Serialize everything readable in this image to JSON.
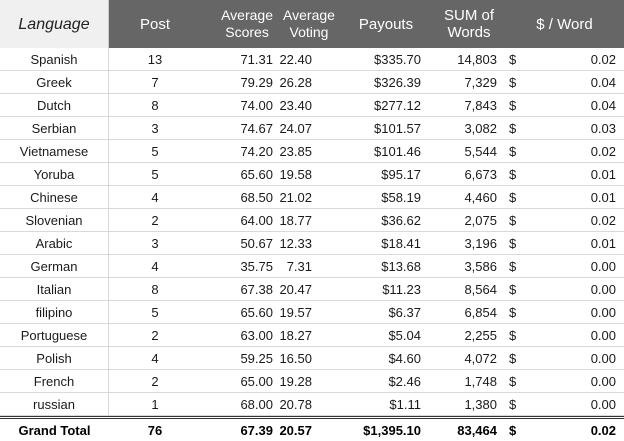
{
  "headers": {
    "language": "Language",
    "post": "Post",
    "avg_scores_1": "Average",
    "avg_scores_2": "Scores",
    "avg_voting_1": "Average",
    "avg_voting_2": "Voting",
    "payouts": "Payouts",
    "sum_words_1": "SUM of",
    "sum_words_2": "Words",
    "dollar_per_word": "$ / Word"
  },
  "colors": {
    "header_bg": "#666666",
    "header_text": "#ffffff",
    "first_header_bg": "#f0f0f0",
    "row_border": "#d9d9d9"
  },
  "rows": [
    {
      "language": "Spanish",
      "post": "13",
      "score": "71.31",
      "voting": "22.40",
      "payout": "$335.70",
      "words": "14,803",
      "dollar": "$",
      "ratio": "0.02"
    },
    {
      "language": "Greek",
      "post": "7",
      "score": "79.29",
      "voting": "26.28",
      "payout": "$326.39",
      "words": "7,329",
      "dollar": "$",
      "ratio": "0.04"
    },
    {
      "language": "Dutch",
      "post": "8",
      "score": "74.00",
      "voting": "23.40",
      "payout": "$277.12",
      "words": "7,843",
      "dollar": "$",
      "ratio": "0.04"
    },
    {
      "language": "Serbian",
      "post": "3",
      "score": "74.67",
      "voting": "24.07",
      "payout": "$101.57",
      "words": "3,082",
      "dollar": "$",
      "ratio": "0.03"
    },
    {
      "language": "Vietnamese",
      "post": "5",
      "score": "74.20",
      "voting": "23.85",
      "payout": "$101.46",
      "words": "5,544",
      "dollar": "$",
      "ratio": "0.02"
    },
    {
      "language": "Yoruba",
      "post": "5",
      "score": "65.60",
      "voting": "19.58",
      "payout": "$95.17",
      "words": "6,673",
      "dollar": "$",
      "ratio": "0.01"
    },
    {
      "language": "Chinese",
      "post": "4",
      "score": "68.50",
      "voting": "21.02",
      "payout": "$58.19",
      "words": "4,460",
      "dollar": "$",
      "ratio": "0.01"
    },
    {
      "language": "Slovenian",
      "post": "2",
      "score": "64.00",
      "voting": "18.77",
      "payout": "$36.62",
      "words": "2,075",
      "dollar": "$",
      "ratio": "0.02"
    },
    {
      "language": "Arabic",
      "post": "3",
      "score": "50.67",
      "voting": "12.33",
      "payout": "$18.41",
      "words": "3,196",
      "dollar": "$",
      "ratio": "0.01"
    },
    {
      "language": "German",
      "post": "4",
      "score": "35.75",
      "voting": "7.31",
      "payout": "$13.68",
      "words": "3,586",
      "dollar": "$",
      "ratio": "0.00"
    },
    {
      "language": "Italian",
      "post": "8",
      "score": "67.38",
      "voting": "20.47",
      "payout": "$11.23",
      "words": "8,564",
      "dollar": "$",
      "ratio": "0.00"
    },
    {
      "language": "filipino",
      "post": "5",
      "score": "65.60",
      "voting": "19.57",
      "payout": "$6.37",
      "words": "6,854",
      "dollar": "$",
      "ratio": "0.00"
    },
    {
      "language": "Portuguese",
      "post": "2",
      "score": "63.00",
      "voting": "18.27",
      "payout": "$5.04",
      "words": "2,255",
      "dollar": "$",
      "ratio": "0.00"
    },
    {
      "language": "Polish",
      "post": "4",
      "score": "59.25",
      "voting": "16.50",
      "payout": "$4.60",
      "words": "4,072",
      "dollar": "$",
      "ratio": "0.00"
    },
    {
      "language": "French",
      "post": "2",
      "score": "65.00",
      "voting": "19.28",
      "payout": "$2.46",
      "words": "1,748",
      "dollar": "$",
      "ratio": "0.00"
    },
    {
      "language": "russian",
      "post": "1",
      "score": "68.00",
      "voting": "20.78",
      "payout": "$1.11",
      "words": "1,380",
      "dollar": "$",
      "ratio": "0.00"
    }
  ],
  "total": {
    "label": "Grand Total",
    "post": "76",
    "score": "67.39",
    "voting": "20.57",
    "payout": "$1,395.10",
    "words": "83,464",
    "dollar": "$",
    "ratio": "0.02"
  }
}
